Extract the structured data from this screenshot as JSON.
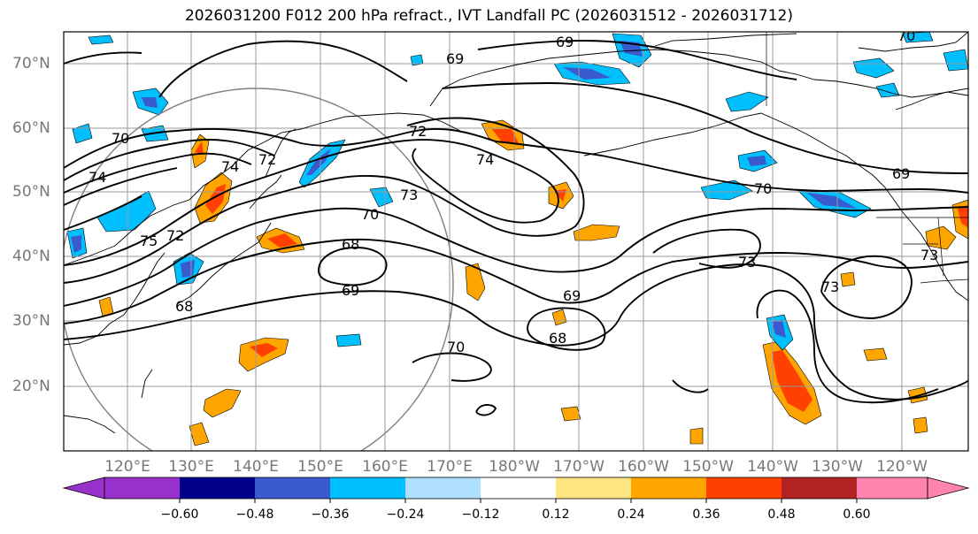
{
  "title": "2026031200 F012 200 hPa refract., IVT Landfall PC (2026031512 - 2026031712)",
  "lat_labels": [
    "70°N",
    "60°N",
    "50°N",
    "40°N",
    "30°N",
    "20°N"
  ],
  "lon_labels": [
    "120°E",
    "130°E",
    "140°E",
    "150°E",
    "160°E",
    "170°E",
    "180°W",
    "170°W",
    "160°W",
    "150°W",
    "140°W",
    "130°W",
    "120°W"
  ],
  "contour_labels": [
    "69",
    "69",
    "70",
    "70",
    "70",
    "72",
    "73",
    "74",
    "74",
    "75",
    "72",
    "68",
    "69",
    "70",
    "73",
    "73",
    "73",
    "68",
    "69",
    "72",
    "74",
    "69",
    "68",
    "70"
  ],
  "colorbar": {
    "ticks": [
      "−0.60",
      "−0.48",
      "−0.36",
      "−0.24",
      "−0.12",
      "0.12",
      "0.24",
      "0.36",
      "0.48",
      "0.60"
    ],
    "colors": [
      "#9932cc",
      "#00008b",
      "#3a5bcf",
      "#00bfff",
      "#b0e0ff",
      "#ffffff",
      "#ffe680",
      "#ffa500",
      "#ff4000",
      "#b22222",
      "#ff85b0"
    ]
  }
}
